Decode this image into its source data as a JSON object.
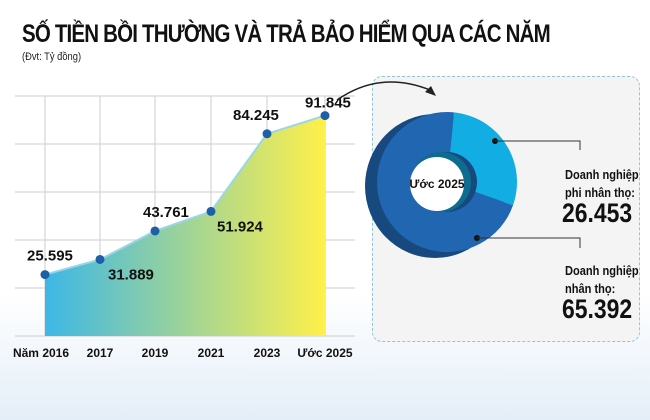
{
  "chart_data": [
    {
      "type": "area",
      "title": "SỐ TIỀN BỒI THƯỜNG VÀ TRẢ BẢO HIỂM QUA CÁC NĂM",
      "subtitle": "(Đvt: Tỷ đồng)",
      "categories": [
        "Năm 2016",
        "2017",
        "2019",
        "2021",
        "2023",
        "Ước 2025"
      ],
      "values": [
        25.595,
        31.889,
        43.761,
        51.924,
        84.245,
        91.845
      ],
      "labels": [
        "25.595",
        "31.889",
        "43.761",
        "51.924",
        "84.245",
        "91.845"
      ],
      "ylim": [
        0,
        100
      ],
      "grid": true,
      "colors": {
        "fill_start": "#3db7e6",
        "fill_end": "#fff04a",
        "line": "#9ad6e8",
        "point": "#1f5fa8"
      }
    },
    {
      "type": "pie",
      "center_label": "Ước 2025",
      "slices": [
        {
          "name": "Doanh nghiệp phi nhân thọ:",
          "name_lines": [
            "Doanh nghiệp",
            "phi nhân thọ:"
          ],
          "value": 26.453,
          "label": "26.453",
          "color": "#12aee3"
        },
        {
          "name": "Doanh nghiệp nhân thọ:",
          "name_lines": [
            "Doanh nghiệp",
            "nhân thọ:"
          ],
          "value": 65.392,
          "label": "65.392",
          "color": "#2166b0"
        }
      ]
    }
  ]
}
